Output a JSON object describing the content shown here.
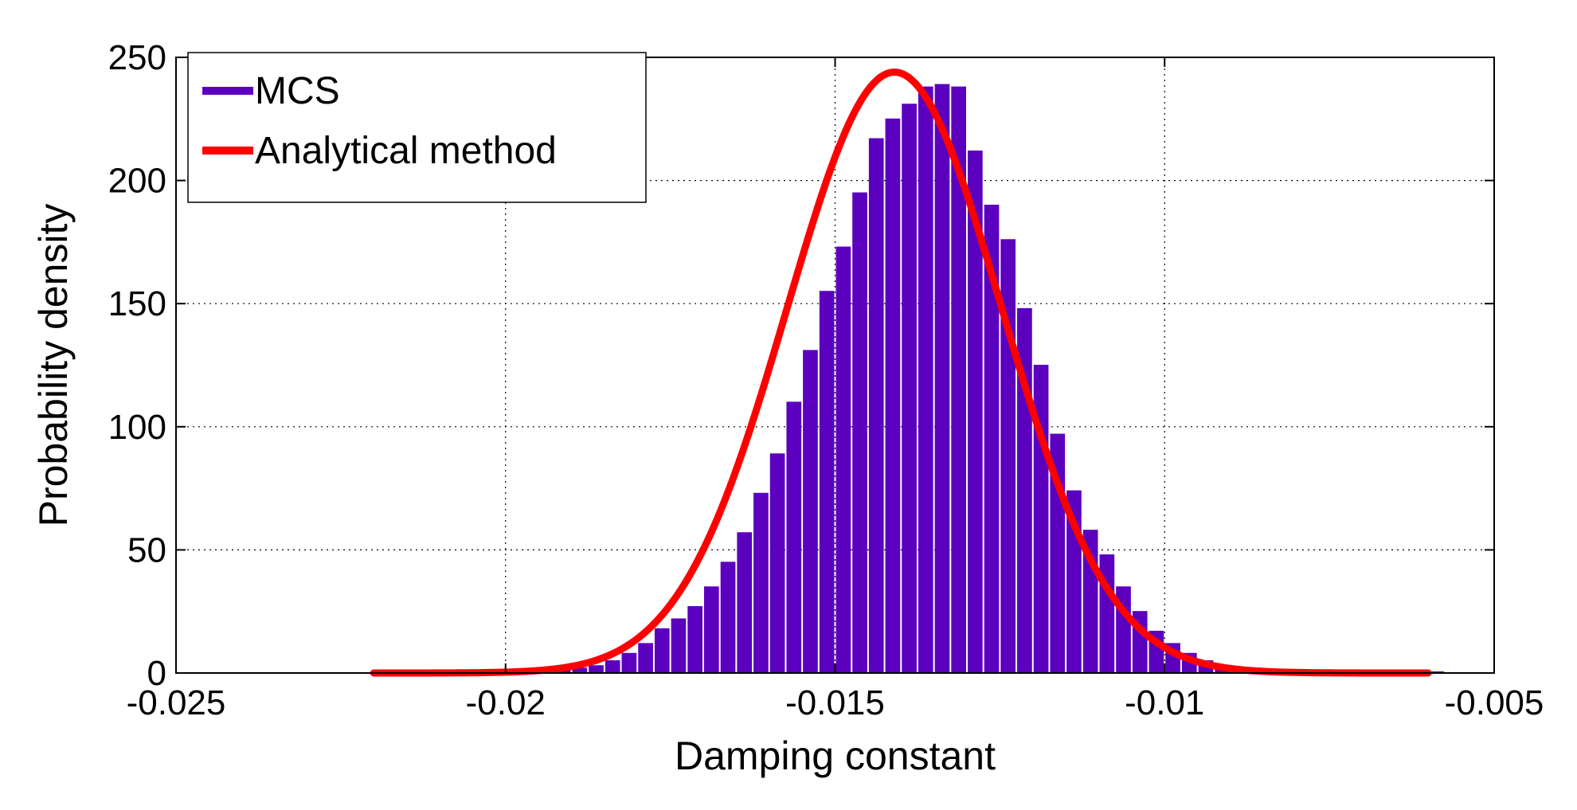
{
  "chart_data": {
    "type": "histogram",
    "xlabel": "Damping constant",
    "ylabel": "Probability density",
    "xlim": [
      -0.025,
      -0.005
    ],
    "ylim": [
      0,
      250
    ],
    "grid": true,
    "legend_position": "top-left",
    "x_tick_values": [
      -0.025,
      -0.02,
      -0.015,
      -0.01,
      -0.005
    ],
    "x_tick_labels": [
      "-0.025",
      "-0.02",
      "-0.015",
      "-0.01",
      "-0.005"
    ],
    "y_tick_values": [
      0,
      50,
      100,
      150,
      200,
      250
    ],
    "y_tick_labels": [
      "0",
      "50",
      "100",
      "150",
      "200",
      "250"
    ],
    "series": [
      {
        "name": "MCS",
        "kind": "histogram",
        "color": "#5b00bf",
        "bin_width": 0.00025,
        "bin_starts": [
          -0.022,
          -0.02175,
          -0.0215,
          -0.02125,
          -0.021,
          -0.02075,
          -0.0205,
          -0.02025,
          -0.02,
          -0.01975,
          -0.0195,
          -0.01925,
          -0.019,
          -0.01875,
          -0.0185,
          -0.01825,
          -0.018,
          -0.01775,
          -0.0175,
          -0.01725,
          -0.017,
          -0.01675,
          -0.0165,
          -0.01625,
          -0.016,
          -0.01575,
          -0.0155,
          -0.01525,
          -0.015,
          -0.01475,
          -0.0145,
          -0.01425,
          -0.014,
          -0.01375,
          -0.0135,
          -0.01325,
          -0.013,
          -0.01275,
          -0.0125,
          -0.01225,
          -0.012,
          -0.01175,
          -0.0115,
          -0.01125,
          -0.011,
          -0.01075,
          -0.0105,
          -0.01025,
          -0.01,
          -0.00975,
          -0.0095,
          -0.00925,
          -0.009,
          -0.00875,
          -0.0085,
          -0.00825,
          -0.008,
          -0.00775,
          -0.0075,
          -0.00725,
          -0.007,
          -0.00675,
          -0.0065,
          -0.00625,
          -0.006
        ],
        "values": [
          0.5,
          0.5,
          0.5,
          0.5,
          0.5,
          0.5,
          1,
          1,
          1,
          1,
          1,
          2,
          2,
          3,
          5,
          8,
          12,
          18,
          22,
          27,
          35,
          45,
          57,
          73,
          89,
          110,
          131,
          155,
          173,
          195,
          217,
          225,
          231,
          238,
          239,
          238,
          212,
          190,
          176,
          148,
          125,
          97,
          74,
          58,
          48,
          35,
          25,
          17,
          12,
          8,
          5,
          3,
          2,
          2,
          1,
          1,
          1,
          1,
          0.5,
          0.5,
          0.5,
          0.5,
          0.5,
          0.5,
          0.5
        ]
      },
      {
        "name": "Analytical method",
        "kind": "line",
        "color": "#ff0000",
        "distribution": "normal",
        "mean": -0.0141,
        "std": 0.00163,
        "x_range": [
          -0.022,
          -0.006
        ],
        "peak_value": 244
      }
    ]
  }
}
